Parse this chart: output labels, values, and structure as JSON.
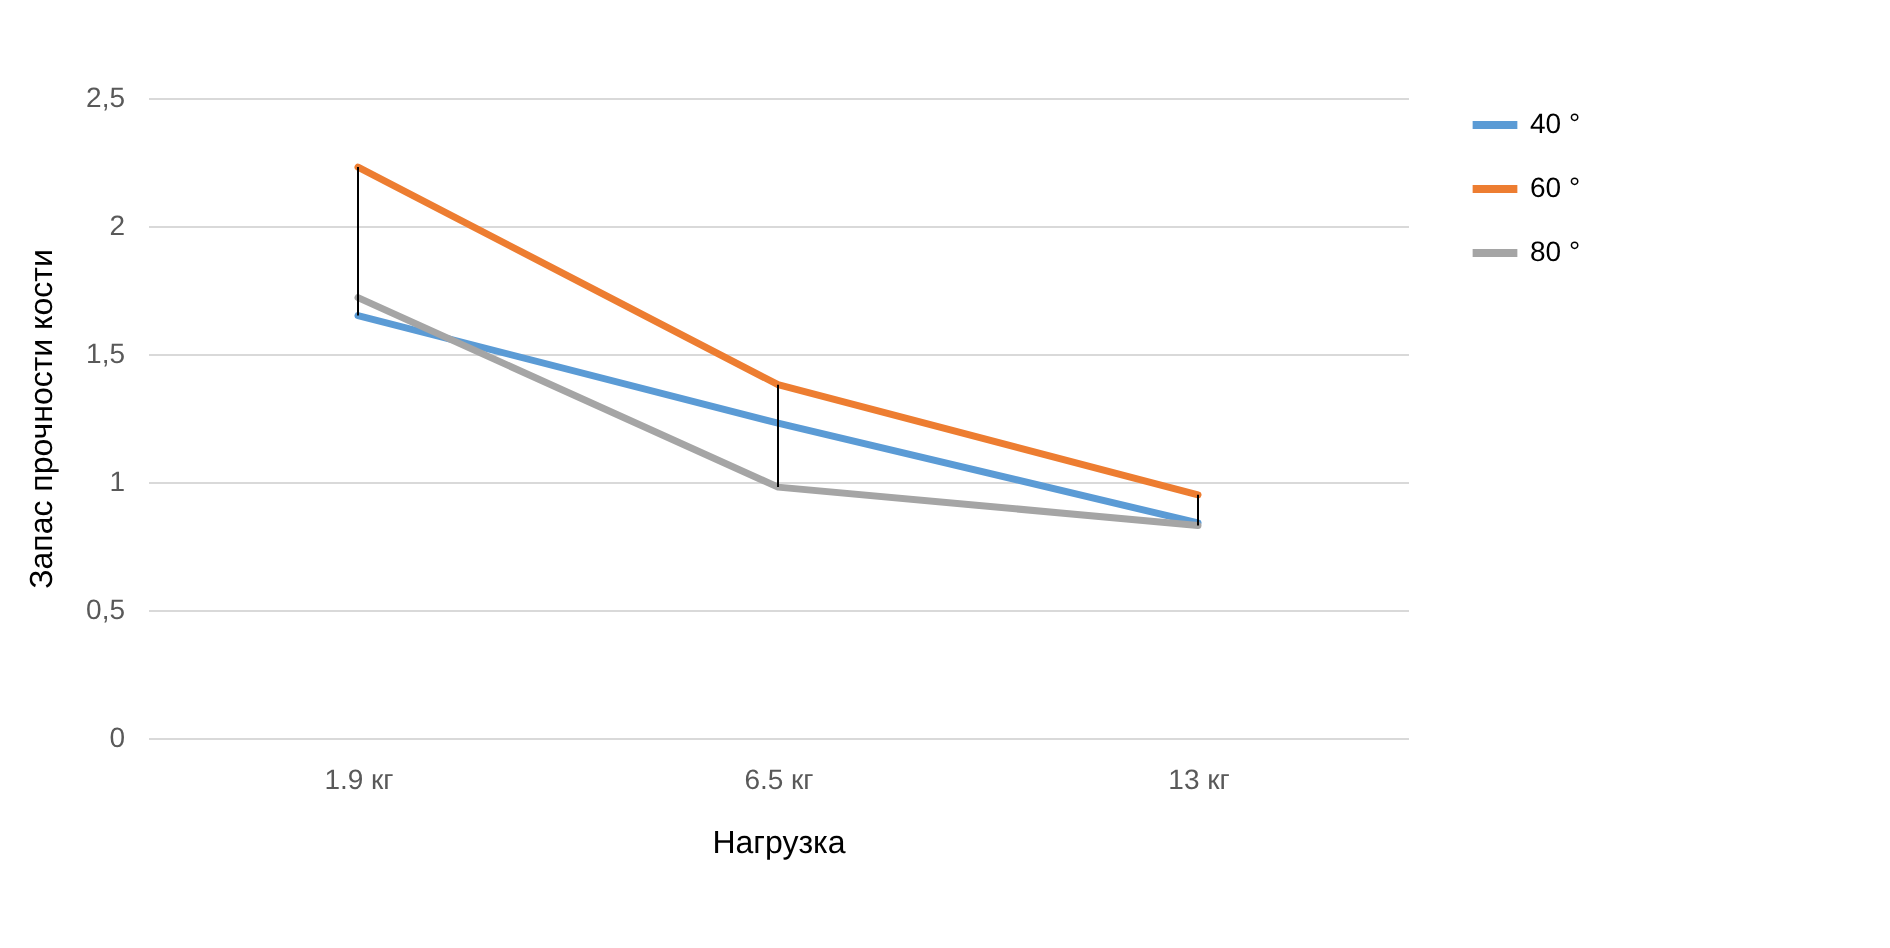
{
  "chart_data": {
    "type": "line",
    "xlabel": "Нагрузка",
    "ylabel": "Запас прочности кости",
    "categories": [
      "1.9 кг",
      "6.5 кг",
      "13 кг"
    ],
    "series": [
      {
        "name": "40 °",
        "color": "#5b9bd5",
        "values": [
          1.65,
          1.23,
          0.84
        ]
      },
      {
        "name": "60 °",
        "color": "#ed7d31",
        "values": [
          2.23,
          1.38,
          0.95
        ]
      },
      {
        "name": "80 °",
        "color": "#a5a5a5",
        "values": [
          1.72,
          0.98,
          0.83
        ]
      }
    ],
    "ylim": [
      0,
      2.5
    ],
    "yticks": [
      0,
      {
        "value": 0.5,
        "label": "0,5"
      },
      1,
      {
        "value": 1.5,
        "label": "1,5"
      },
      2,
      {
        "value": 2.5,
        "label": "2,5"
      }
    ],
    "grid": "y",
    "legend": "right"
  }
}
